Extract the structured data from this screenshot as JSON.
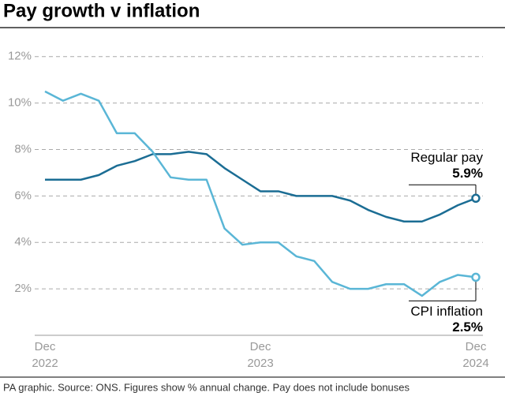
{
  "chart_data": {
    "type": "line",
    "title": "Pay growth v inflation",
    "source": "PA graphic. Source: ONS. Figures show % annual change. Pay does not include bonuses",
    "categories": [
      "Dec 2022",
      null,
      null,
      null,
      null,
      null,
      null,
      null,
      null,
      null,
      null,
      null,
      "Dec 2023",
      null,
      null,
      null,
      null,
      null,
      null,
      null,
      null,
      null,
      null,
      null,
      "Dec 2024"
    ],
    "series": [
      {
        "name": "Regular pay",
        "color": "#1b6d94",
        "values": [
          6.7,
          6.7,
          6.7,
          6.9,
          7.3,
          7.5,
          7.8,
          7.8,
          7.9,
          7.8,
          7.2,
          6.7,
          6.2,
          6.2,
          6.0,
          6.0,
          6.0,
          5.8,
          5.4,
          5.1,
          4.9,
          4.9,
          5.2,
          5.6,
          5.9
        ],
        "value_labels": [
          null,
          null,
          null,
          null,
          null,
          null,
          null,
          null,
          null,
          null,
          null,
          null,
          null,
          null,
          null,
          null,
          null,
          null,
          null,
          null,
          null,
          null,
          null,
          null,
          "5.9%"
        ]
      },
      {
        "name": "CPI inflation",
        "color": "#5ab6d6",
        "values": [
          10.5,
          10.1,
          10.4,
          10.1,
          8.7,
          8.7,
          7.9,
          6.8,
          6.7,
          6.7,
          4.6,
          3.9,
          4.0,
          4.0,
          3.4,
          3.2,
          2.3,
          2.0,
          2.0,
          2.2,
          2.2,
          1.7,
          2.3,
          2.6,
          2.5
        ],
        "value_labels": [
          null,
          null,
          null,
          null,
          null,
          null,
          null,
          null,
          null,
          null,
          null,
          null,
          null,
          null,
          null,
          null,
          null,
          null,
          null,
          null,
          null,
          null,
          null,
          null,
          "2.5%"
        ]
      }
    ],
    "ylim": [
      0,
      12.5
    ],
    "yticks": [
      {
        "value": 2,
        "label": "2%"
      },
      {
        "value": 4,
        "label": "4%"
      },
      {
        "value": 6,
        "label": "6%"
      },
      {
        "value": 8,
        "label": "8%"
      },
      {
        "value": 10,
        "label": "10%"
      },
      {
        "value": 12,
        "label": "12%"
      }
    ],
    "grid": true
  }
}
